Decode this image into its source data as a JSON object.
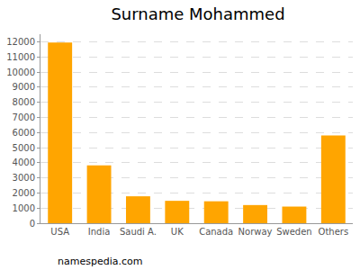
{
  "chart_data": {
    "type": "bar",
    "title": "Surname Mohammed",
    "categories": [
      "USA",
      "India",
      "Saudi A.",
      "UK",
      "Canada",
      "Norway",
      "Sweden",
      "Others"
    ],
    "values": [
      11950,
      3820,
      1780,
      1480,
      1450,
      1200,
      1100,
      5800
    ],
    "color": "#ffa500",
    "ylim": [
      0,
      12500
    ],
    "yticks": [
      0,
      1000,
      2000,
      3000,
      4000,
      5000,
      6000,
      7000,
      8000,
      9000,
      10000,
      11000,
      12000
    ],
    "grid": true,
    "annotations": [
      {
        "text": "namespedia.com"
      }
    ]
  }
}
